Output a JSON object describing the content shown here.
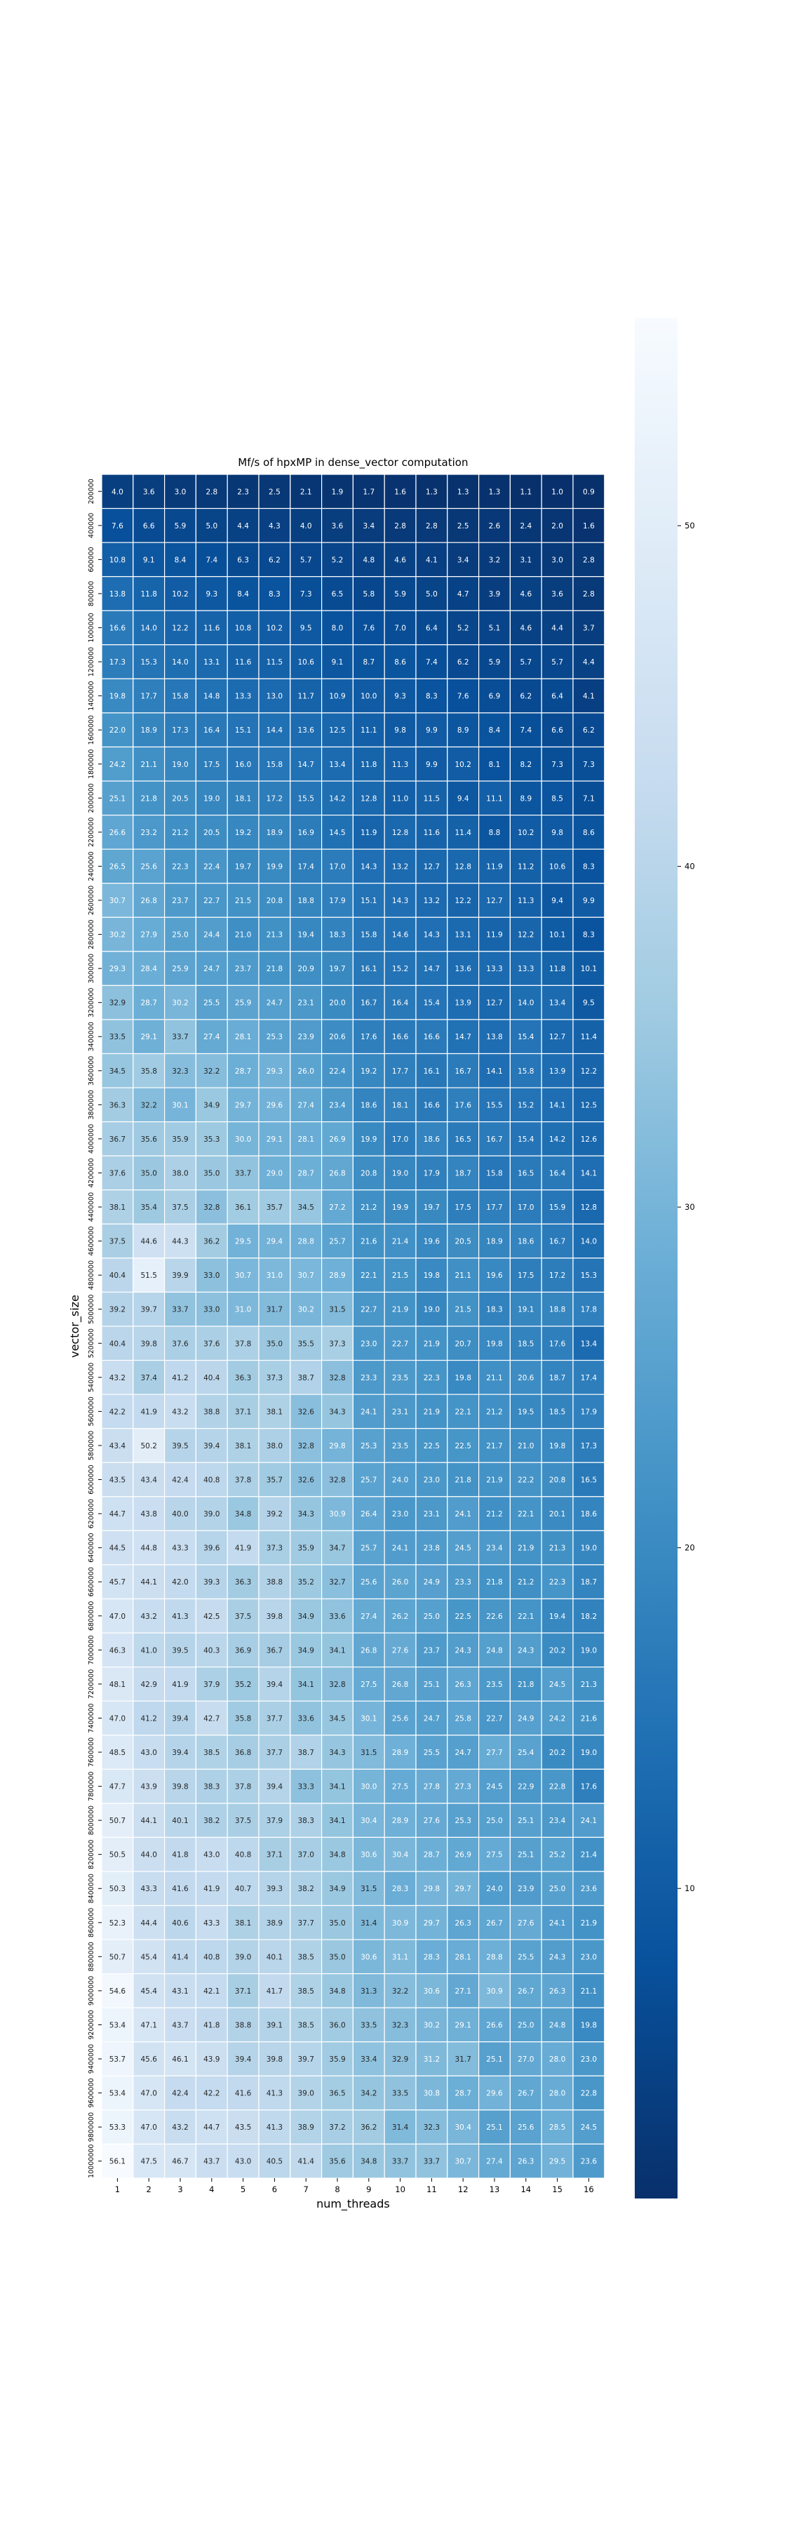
{
  "chart_data": {
    "type": "heatmap",
    "title": "Mf/s of hpxMP in dense_vector computation",
    "xlabel": "num_threads",
    "ylabel": "vector_size",
    "x_categories": [
      "1",
      "2",
      "3",
      "4",
      "5",
      "6",
      "7",
      "8",
      "9",
      "10",
      "11",
      "12",
      "13",
      "14",
      "15",
      "16"
    ],
    "y_categories": [
      "200000",
      "400000",
      "600000",
      "800000",
      "1000000",
      "1200000",
      "1400000",
      "1600000",
      "1800000",
      "2000000",
      "2200000",
      "2400000",
      "2600000",
      "2800000",
      "3000000",
      "3200000",
      "3400000",
      "3600000",
      "3800000",
      "4000000",
      "4200000",
      "4400000",
      "4600000",
      "4800000",
      "5000000",
      "5200000",
      "5400000",
      "5600000",
      "5800000",
      "6000000",
      "6200000",
      "6400000",
      "6600000",
      "6800000",
      "7000000",
      "7200000",
      "7400000",
      "7600000",
      "7800000",
      "8000000",
      "8200000",
      "8400000",
      "8600000",
      "8800000",
      "9000000",
      "9200000",
      "9400000",
      "9600000",
      "9800000",
      "10000000"
    ],
    "values": [
      [
        4.0,
        3.6,
        3.0,
        2.8,
        2.3,
        2.5,
        2.1,
        1.9,
        1.7,
        1.6,
        1.3,
        1.3,
        1.3,
        1.1,
        1.0,
        0.9
      ],
      [
        7.6,
        6.6,
        5.9,
        5.0,
        4.4,
        4.3,
        4.0,
        3.6,
        3.4,
        2.8,
        2.8,
        2.5,
        2.6,
        2.4,
        2.0,
        1.6
      ],
      [
        10.8,
        9.1,
        8.4,
        7.4,
        6.3,
        6.2,
        5.7,
        5.2,
        4.8,
        4.6,
        4.1,
        3.4,
        3.2,
        3.1,
        3.0,
        2.8
      ],
      [
        13.8,
        11.8,
        10.2,
        9.3,
        8.4,
        8.3,
        7.3,
        6.5,
        5.8,
        5.9,
        5.0,
        4.7,
        3.9,
        4.6,
        3.6,
        2.8
      ],
      [
        16.6,
        14.0,
        12.2,
        11.6,
        10.8,
        10.2,
        9.5,
        8.0,
        7.6,
        7.0,
        6.4,
        5.2,
        5.1,
        4.6,
        4.4,
        3.7
      ],
      [
        17.3,
        15.3,
        14.0,
        13.1,
        11.6,
        11.5,
        10.6,
        9.1,
        8.7,
        8.6,
        7.4,
        6.2,
        5.9,
        5.7,
        5.7,
        4.4
      ],
      [
        19.8,
        17.7,
        15.8,
        14.8,
        13.3,
        13.0,
        11.7,
        10.9,
        10.0,
        9.3,
        8.3,
        7.6,
        6.9,
        6.2,
        6.4,
        4.1
      ],
      [
        22.0,
        18.9,
        17.3,
        16.4,
        15.1,
        14.4,
        13.6,
        12.5,
        11.1,
        9.8,
        9.9,
        8.9,
        8.4,
        7.4,
        6.6,
        6.2
      ],
      [
        24.2,
        21.1,
        19.0,
        17.5,
        16.0,
        15.8,
        14.7,
        13.4,
        11.8,
        11.3,
        9.9,
        10.2,
        8.1,
        8.2,
        7.3,
        7.3
      ],
      [
        25.1,
        21.8,
        20.5,
        19.0,
        18.1,
        17.2,
        15.5,
        14.2,
        12.8,
        11.0,
        11.5,
        9.4,
        11.1,
        8.9,
        8.5,
        7.1
      ],
      [
        26.6,
        23.2,
        21.2,
        20.5,
        19.2,
        18.9,
        16.9,
        14.5,
        11.9,
        12.8,
        11.6,
        11.4,
        8.8,
        10.2,
        9.8,
        8.6
      ],
      [
        26.5,
        25.6,
        22.3,
        22.4,
        19.7,
        19.9,
        17.4,
        17.0,
        14.3,
        13.2,
        12.7,
        12.8,
        11.9,
        11.2,
        10.6,
        8.3
      ],
      [
        30.7,
        26.8,
        23.7,
        22.7,
        21.5,
        20.8,
        18.8,
        17.9,
        15.1,
        14.3,
        13.2,
        12.2,
        12.7,
        11.3,
        9.4,
        9.9
      ],
      [
        30.2,
        27.9,
        25.0,
        24.4,
        21.0,
        21.3,
        19.4,
        18.3,
        15.8,
        14.6,
        14.3,
        13.1,
        11.9,
        12.2,
        10.1,
        8.3
      ],
      [
        29.3,
        28.4,
        25.9,
        24.7,
        23.7,
        21.8,
        20.9,
        19.7,
        16.1,
        15.2,
        14.7,
        13.6,
        13.3,
        13.3,
        11.8,
        10.1
      ],
      [
        32.9,
        28.7,
        30.2,
        25.5,
        25.9,
        24.7,
        23.1,
        20.0,
        16.7,
        16.4,
        15.4,
        13.9,
        12.7,
        14.0,
        13.4,
        9.5
      ],
      [
        33.5,
        29.1,
        33.7,
        27.4,
        28.1,
        25.3,
        23.9,
        20.6,
        17.6,
        16.6,
        16.6,
        14.7,
        13.8,
        15.4,
        12.7,
        11.4
      ],
      [
        34.5,
        35.8,
        32.3,
        32.2,
        28.7,
        29.3,
        26.0,
        22.4,
        19.2,
        17.7,
        16.1,
        16.7,
        14.1,
        15.8,
        13.9,
        12.2
      ],
      [
        36.3,
        32.2,
        30.1,
        34.9,
        29.7,
        29.6,
        27.4,
        23.4,
        18.6,
        18.1,
        16.6,
        17.6,
        15.5,
        15.2,
        14.1,
        12.5
      ],
      [
        36.7,
        35.6,
        35.9,
        35.3,
        30.0,
        29.1,
        28.1,
        26.9,
        19.9,
        17.0,
        18.6,
        16.5,
        16.7,
        15.4,
        14.2,
        12.6
      ],
      [
        37.6,
        35.0,
        38.0,
        35.0,
        33.7,
        29.0,
        28.7,
        26.8,
        20.8,
        19.0,
        17.9,
        18.7,
        15.8,
        16.5,
        16.4,
        14.1
      ],
      [
        38.1,
        35.4,
        37.5,
        32.8,
        36.1,
        35.7,
        34.5,
        27.2,
        21.2,
        19.9,
        19.7,
        17.5,
        17.7,
        17.0,
        15.9,
        12.8
      ],
      [
        37.5,
        44.6,
        44.3,
        36.2,
        29.5,
        29.4,
        28.8,
        25.7,
        21.6,
        21.4,
        19.6,
        20.5,
        18.9,
        18.6,
        16.7,
        14.0
      ],
      [
        40.4,
        51.5,
        39.9,
        33.0,
        30.7,
        31.0,
        30.7,
        28.9,
        22.1,
        21.5,
        19.8,
        21.1,
        19.6,
        17.5,
        17.2,
        15.3
      ],
      [
        39.2,
        39.7,
        33.7,
        33.0,
        31.0,
        31.7,
        30.2,
        31.5,
        22.7,
        21.9,
        19.0,
        21.5,
        18.3,
        19.1,
        18.8,
        17.8
      ],
      [
        40.4,
        39.8,
        37.6,
        37.6,
        37.8,
        35.0,
        35.5,
        37.3,
        23.0,
        22.7,
        21.9,
        20.7,
        19.8,
        18.5,
        17.6,
        13.4
      ],
      [
        43.2,
        37.4,
        41.2,
        40.4,
        36.3,
        37.3,
        38.7,
        32.8,
        23.3,
        23.5,
        22.3,
        19.8,
        21.1,
        20.6,
        18.7,
        17.4
      ],
      [
        42.2,
        41.9,
        43.2,
        38.8,
        37.1,
        38.1,
        32.6,
        34.3,
        24.1,
        23.1,
        21.9,
        22.1,
        21.2,
        19.5,
        18.5,
        17.9
      ],
      [
        43.4,
        50.2,
        39.5,
        39.4,
        38.1,
        38.0,
        32.8,
        29.8,
        25.3,
        23.5,
        22.5,
        22.5,
        21.7,
        21.0,
        19.8,
        17.3
      ],
      [
        43.5,
        43.4,
        42.4,
        40.8,
        37.8,
        35.7,
        32.6,
        32.8,
        25.7,
        24.0,
        23.0,
        21.8,
        21.9,
        22.2,
        20.8,
        16.5
      ],
      [
        44.7,
        43.8,
        40.0,
        39.0,
        34.8,
        39.2,
        34.3,
        30.9,
        26.4,
        23.0,
        23.1,
        24.1,
        21.2,
        22.1,
        20.1,
        18.6
      ],
      [
        44.5,
        44.8,
        43.3,
        39.6,
        41.9,
        37.3,
        35.9,
        34.7,
        25.7,
        24.1,
        23.8,
        24.5,
        23.4,
        21.9,
        21.3,
        19.0
      ],
      [
        45.7,
        44.1,
        42.0,
        39.3,
        36.3,
        38.8,
        35.2,
        32.7,
        25.6,
        26.0,
        24.9,
        23.3,
        21.8,
        21.2,
        22.3,
        18.7
      ],
      [
        47.0,
        43.2,
        41.3,
        42.5,
        37.5,
        39.8,
        34.9,
        33.6,
        27.4,
        26.2,
        25.0,
        22.5,
        22.6,
        22.1,
        19.4,
        18.2
      ],
      [
        46.3,
        41.0,
        39.5,
        40.3,
        36.9,
        36.7,
        34.9,
        34.1,
        26.8,
        27.6,
        23.7,
        24.3,
        24.8,
        24.3,
        20.2,
        19.0
      ],
      [
        48.1,
        42.9,
        41.9,
        37.9,
        35.2,
        39.4,
        34.1,
        32.8,
        27.5,
        26.8,
        25.1,
        26.3,
        23.5,
        21.8,
        24.5,
        21.3
      ],
      [
        47.0,
        41.2,
        39.4,
        42.7,
        35.8,
        37.7,
        33.6,
        34.5,
        30.1,
        25.6,
        24.7,
        25.8,
        22.7,
        24.9,
        24.2,
        21.6
      ],
      [
        48.5,
        43.0,
        39.4,
        38.5,
        36.8,
        37.7,
        38.7,
        34.3,
        31.5,
        28.9,
        25.5,
        24.7,
        27.7,
        25.4,
        20.2,
        19.0
      ],
      [
        47.7,
        43.9,
        39.8,
        38.3,
        37.8,
        39.4,
        33.3,
        34.1,
        30.0,
        27.5,
        27.8,
        27.3,
        24.5,
        22.9,
        22.8,
        17.6
      ],
      [
        50.7,
        44.1,
        40.1,
        38.2,
        37.5,
        37.9,
        38.3,
        34.1,
        30.4,
        28.9,
        27.6,
        25.3,
        25.0,
        25.1,
        23.4,
        24.1
      ],
      [
        50.5,
        44.0,
        41.8,
        43.0,
        40.8,
        37.1,
        37.0,
        34.8,
        30.6,
        30.4,
        28.7,
        26.9,
        27.5,
        25.1,
        25.2,
        21.4
      ],
      [
        50.3,
        43.3,
        41.6,
        41.9,
        40.7,
        39.3,
        38.2,
        34.9,
        31.5,
        28.3,
        29.8,
        29.7,
        24.0,
        23.9,
        25.0,
        23.6
      ],
      [
        52.3,
        44.4,
        40.6,
        43.3,
        38.1,
        38.9,
        37.7,
        35.0,
        31.4,
        30.9,
        29.7,
        26.3,
        26.7,
        27.6,
        24.1,
        21.9
      ],
      [
        50.7,
        45.4,
        41.4,
        40.8,
        39.0,
        40.1,
        38.5,
        35.0,
        30.6,
        31.1,
        28.3,
        28.1,
        28.8,
        25.5,
        24.3,
        23.0
      ],
      [
        54.6,
        45.4,
        43.1,
        42.1,
        37.1,
        41.7,
        38.5,
        34.8,
        31.3,
        32.2,
        30.6,
        27.1,
        30.9,
        26.7,
        26.3,
        21.1
      ],
      [
        53.4,
        47.1,
        43.7,
        41.8,
        38.8,
        39.1,
        38.5,
        36.0,
        33.5,
        32.3,
        30.2,
        29.1,
        26.6,
        25.0,
        24.8,
        19.8
      ],
      [
        53.7,
        45.6,
        46.1,
        43.9,
        39.4,
        39.8,
        39.7,
        35.9,
        33.4,
        32.9,
        31.2,
        31.7,
        25.1,
        27.0,
        28.0,
        23.0
      ],
      [
        53.4,
        47.0,
        42.4,
        42.2,
        41.6,
        41.3,
        39.0,
        36.5,
        34.2,
        33.5,
        30.8,
        28.7,
        29.6,
        26.7,
        28.0,
        22.8
      ],
      [
        53.3,
        47.0,
        43.2,
        44.7,
        43.5,
        41.3,
        38.9,
        37.2,
        36.2,
        31.4,
        32.3,
        30.4,
        25.1,
        25.6,
        28.5,
        24.5
      ],
      [
        56.1,
        47.5,
        46.7,
        43.7,
        43.0,
        40.5,
        41.4,
        35.6,
        34.8,
        33.7,
        33.7,
        30.7,
        27.4,
        26.3,
        29.5,
        23.6
      ]
    ],
    "colormap": "Blues_r",
    "colorbar_ticks": [
      10,
      20,
      30,
      40,
      50
    ],
    "colorbar_range": [
      0.9,
      56.1
    ],
    "cell_text_color_dark": "#ffffff",
    "cell_text_color_light": "#262626",
    "grid_color": "#ffffff"
  }
}
